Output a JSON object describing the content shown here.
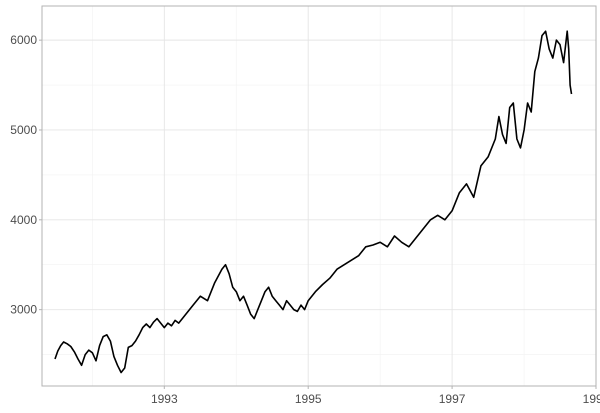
{
  "chart_data": {
    "type": "line",
    "title": "",
    "xlabel": "",
    "ylabel": "",
    "xlim": [
      1991.3,
      1999.0
    ],
    "ylim": [
      2150,
      6380
    ],
    "x_ticks": [
      1993,
      1995,
      1997,
      1999
    ],
    "x_tick_labels": [
      "1993",
      "1995",
      "1997",
      "1999"
    ],
    "y_ticks": [
      3000,
      4000,
      5000,
      6000
    ],
    "y_tick_labels": [
      "3000",
      "4000",
      "5000",
      "6000"
    ],
    "grid": true,
    "series": [
      {
        "color": "#000000",
        "x": [
          1991.48,
          1991.52,
          1991.56,
          1991.6,
          1991.65,
          1991.7,
          1991.75,
          1991.8,
          1991.85,
          1991.9,
          1991.95,
          1992.0,
          1992.05,
          1992.1,
          1992.15,
          1992.2,
          1992.25,
          1992.3,
          1992.35,
          1992.4,
          1992.45,
          1992.5,
          1992.55,
          1992.6,
          1992.65,
          1992.7,
          1992.75,
          1992.8,
          1992.85,
          1992.9,
          1992.95,
          1993.0,
          1993.05,
          1993.1,
          1993.15,
          1993.2,
          1993.3,
          1993.4,
          1993.5,
          1993.6,
          1993.7,
          1993.8,
          1993.85,
          1993.9,
          1993.95,
          1994.0,
          1994.05,
          1994.1,
          1994.15,
          1994.2,
          1994.25,
          1994.3,
          1994.35,
          1994.4,
          1994.45,
          1994.5,
          1994.55,
          1994.6,
          1994.65,
          1994.7,
          1994.75,
          1994.8,
          1994.85,
          1994.9,
          1994.95,
          1995.0,
          1995.1,
          1995.2,
          1995.3,
          1995.4,
          1995.5,
          1995.6,
          1995.7,
          1995.8,
          1995.9,
          1996.0,
          1996.1,
          1996.2,
          1996.3,
          1996.4,
          1996.5,
          1996.6,
          1996.7,
          1996.8,
          1996.9,
          1997.0,
          1997.1,
          1997.2,
          1997.3,
          1997.4,
          1997.5,
          1997.6,
          1997.65,
          1997.7,
          1997.75,
          1997.8,
          1997.85,
          1997.9,
          1997.95,
          1998.0,
          1998.05,
          1998.1,
          1998.15,
          1998.2,
          1998.25,
          1998.3,
          1998.35,
          1998.4,
          1998.45,
          1998.5,
          1998.55,
          1998.6,
          1998.62,
          1998.64,
          1998.66
        ],
        "y": [
          2450,
          2540,
          2600,
          2640,
          2620,
          2590,
          2530,
          2450,
          2380,
          2500,
          2550,
          2520,
          2430,
          2600,
          2700,
          2720,
          2650,
          2480,
          2380,
          2300,
          2350,
          2580,
          2600,
          2650,
          2720,
          2800,
          2840,
          2800,
          2860,
          2900,
          2850,
          2800,
          2850,
          2820,
          2880,
          2850,
          2950,
          3050,
          3150,
          3100,
          3300,
          3450,
          3500,
          3400,
          3250,
          3200,
          3100,
          3150,
          3050,
          2950,
          2900,
          3000,
          3100,
          3200,
          3250,
          3150,
          3100,
          3050,
          3000,
          3100,
          3050,
          3000,
          2980,
          3050,
          3000,
          3100,
          3200,
          3280,
          3350,
          3450,
          3500,
          3550,
          3600,
          3700,
          3720,
          3750,
          3700,
          3820,
          3750,
          3700,
          3800,
          3900,
          4000,
          4050,
          4000,
          4100,
          4300,
          4400,
          4250,
          4600,
          4700,
          4900,
          5150,
          4950,
          4850,
          5250,
          5300,
          4900,
          4800,
          5000,
          5300,
          5200,
          5650,
          5800,
          6050,
          6100,
          5900,
          5800,
          6000,
          5950,
          5750,
          6100,
          5900,
          5500,
          5400
        ]
      }
    ]
  }
}
